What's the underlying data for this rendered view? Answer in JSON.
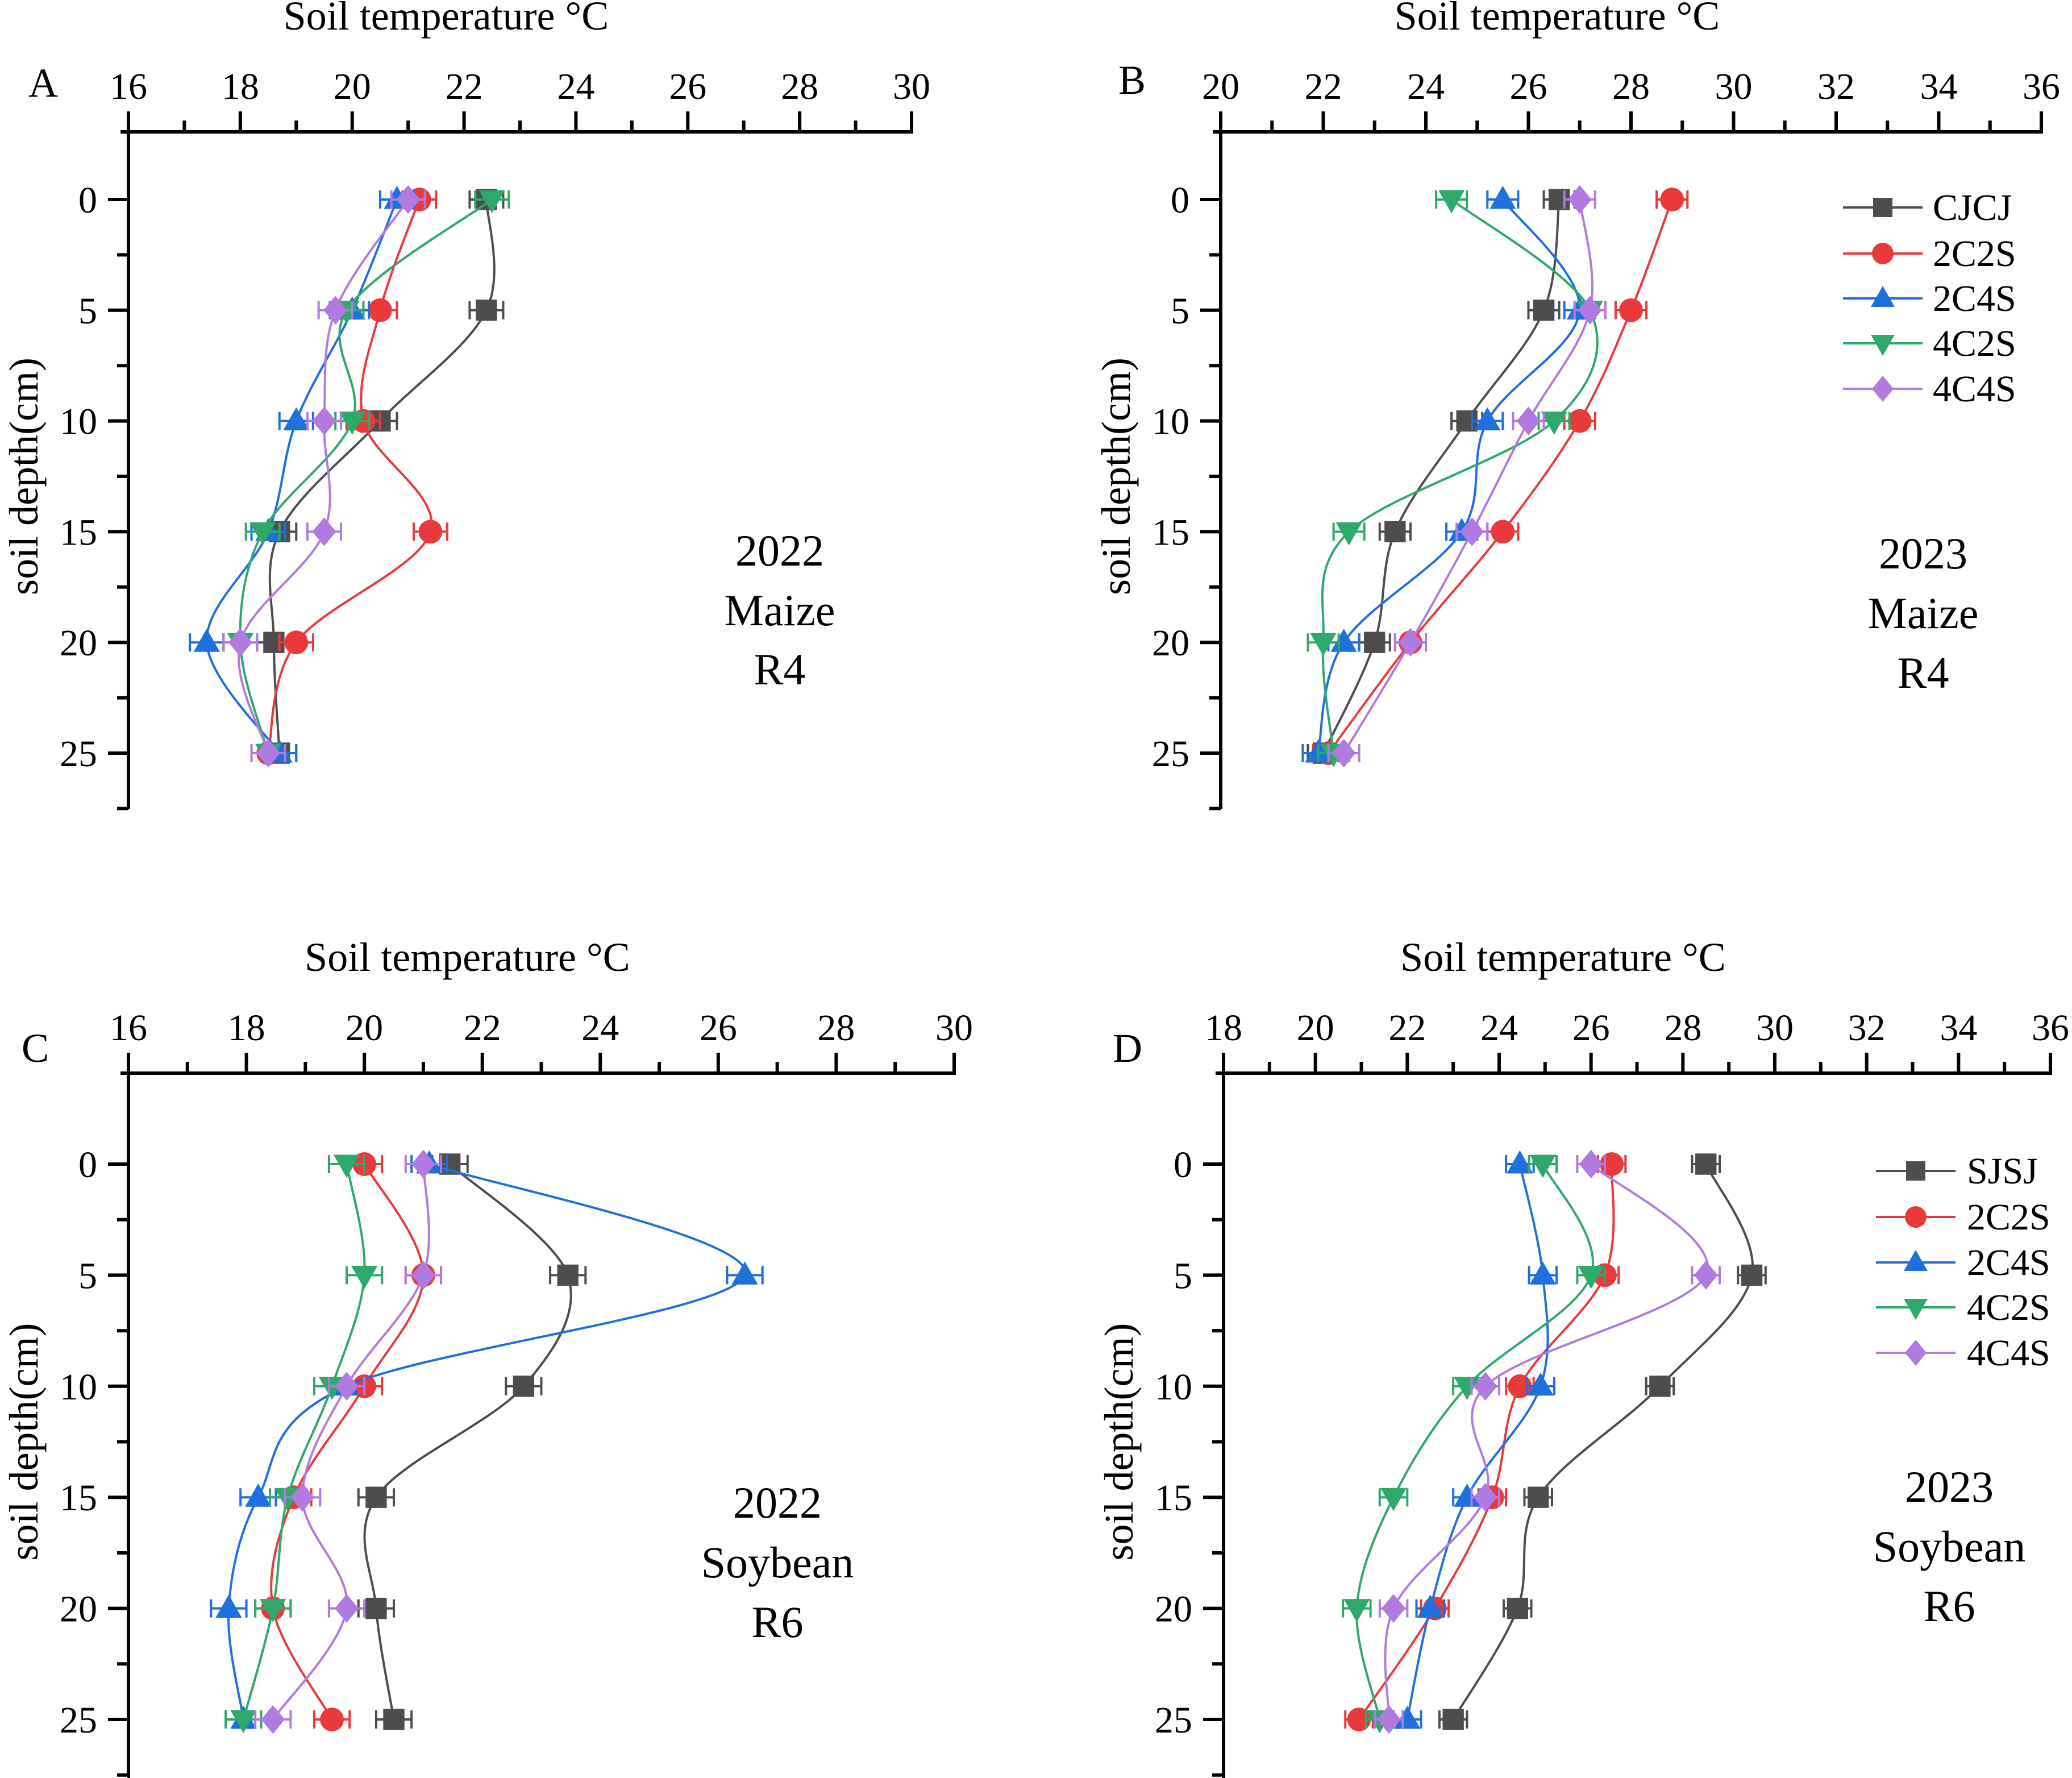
{
  "chart_data": [
    {
      "type": "line",
      "panel": "A",
      "title": "Soil temperature °C",
      "xlabel": "Soil temperature °C",
      "ylabel": "soil depth(cm)",
      "annotation": [
        "2022",
        "Maize",
        "R4"
      ],
      "xlim": [
        16,
        30
      ],
      "xticks": [
        16,
        18,
        20,
        22,
        24,
        26,
        28,
        30
      ],
      "ylim": [
        27.5,
        -2.5
      ],
      "yticks": [
        0,
        5,
        10,
        15,
        20,
        25
      ],
      "y": [
        0,
        5,
        10,
        15,
        20,
        25
      ],
      "legend": null,
      "series": [
        {
          "name": "CJCJ",
          "color": "#4d4d4d",
          "marker": "square",
          "values": [
            22.4,
            22.4,
            20.5,
            18.7,
            18.6,
            18.7
          ]
        },
        {
          "name": "2C2S",
          "color": "#e8393b",
          "marker": "circle",
          "values": [
            21.2,
            20.5,
            20.2,
            21.4,
            19.0,
            18.5
          ]
        },
        {
          "name": "2C4S",
          "color": "#1f6fdc",
          "marker": "triangle-up",
          "values": [
            20.8,
            20.0,
            19.0,
            18.5,
            17.4,
            18.7
          ]
        },
        {
          "name": "4C2S",
          "color": "#2ea86b",
          "marker": "triangle-down",
          "values": [
            22.5,
            19.9,
            20.0,
            18.4,
            18.0,
            18.5
          ]
        },
        {
          "name": "4C4S",
          "color": "#b07ae0",
          "marker": "diamond",
          "values": [
            21.0,
            19.7,
            19.5,
            19.5,
            18.0,
            18.5
          ]
        }
      ]
    },
    {
      "type": "line",
      "panel": "B",
      "title": "Soil temperature °C",
      "xlabel": "Soil temperature °C",
      "ylabel": "soil depth(cm)",
      "annotation": [
        "2023",
        "Maize",
        "R4"
      ],
      "xlim": [
        20,
        36
      ],
      "xticks": [
        20,
        22,
        24,
        26,
        28,
        30,
        32,
        34,
        36
      ],
      "ylim": [
        27.5,
        -2.5
      ],
      "yticks": [
        0,
        5,
        10,
        15,
        20,
        25
      ],
      "y": [
        0,
        5,
        10,
        15,
        20,
        25
      ],
      "legend": "top-right",
      "series": [
        {
          "name": "CJCJ",
          "color": "#4d4d4d",
          "marker": "square",
          "values": [
            26.6,
            26.3,
            24.8,
            23.4,
            23.0,
            22.0
          ]
        },
        {
          "name": "2C2S",
          "color": "#e8393b",
          "marker": "circle",
          "values": [
            28.8,
            28.0,
            27.0,
            25.5,
            23.7,
            22.1
          ]
        },
        {
          "name": "2C4S",
          "color": "#1f6fdc",
          "marker": "triangle-up",
          "values": [
            25.5,
            27.0,
            25.2,
            24.7,
            22.4,
            21.9
          ]
        },
        {
          "name": "4C2S",
          "color": "#2ea86b",
          "marker": "triangle-down",
          "values": [
            24.5,
            27.2,
            26.5,
            22.5,
            22.0,
            22.2
          ]
        },
        {
          "name": "4C4S",
          "color": "#b07ae0",
          "marker": "diamond",
          "values": [
            27.0,
            27.2,
            26.0,
            24.9,
            23.7,
            22.4
          ]
        }
      ]
    },
    {
      "type": "line",
      "panel": "C",
      "title": "Soil temperature °C",
      "xlabel": "Soil temperature °C",
      "ylabel": "soil depth(cm)",
      "annotation": [
        "2022",
        "Soybean",
        "R6"
      ],
      "xlim": [
        16,
        30
      ],
      "xticks": [
        16,
        18,
        20,
        22,
        24,
        26,
        28,
        30
      ],
      "ylim": [
        27.5,
        -2.5
      ],
      "yticks": [
        0,
        5,
        10,
        15,
        20,
        25
      ],
      "y": [
        0,
        5,
        10,
        15,
        20,
        25
      ],
      "legend": null,
      "series": [
        {
          "name": "SJSJ",
          "color": "#4d4d4d",
          "marker": "square",
          "values": [
            21.45,
            23.45,
            22.7,
            20.2,
            20.2,
            20.5
          ]
        },
        {
          "name": "2C2S",
          "color": "#e8393b",
          "marker": "circle",
          "values": [
            20.0,
            21.0,
            20.0,
            18.8,
            18.45,
            19.45
          ]
        },
        {
          "name": "2C4S",
          "color": "#1f6fdc",
          "marker": "triangle-up",
          "values": [
            21.1,
            26.45,
            19.7,
            18.2,
            17.7,
            17.95
          ]
        },
        {
          "name": "4C2S",
          "color": "#2ea86b",
          "marker": "triangle-down",
          "values": [
            19.7,
            20.0,
            19.45,
            18.7,
            18.45,
            17.95
          ]
        },
        {
          "name": "4C4S",
          "color": "#b07ae0",
          "marker": "diamond",
          "values": [
            21.0,
            21.0,
            19.7,
            18.95,
            19.7,
            18.45
          ]
        }
      ]
    },
    {
      "type": "line",
      "panel": "D",
      "title": "Soil temperature °C",
      "xlabel": "Soil temperature °C",
      "ylabel": "soil depth(cm)",
      "annotation": [
        "2023",
        "Soybean",
        "R6"
      ],
      "xlim": [
        18,
        36
      ],
      "xticks": [
        18,
        20,
        22,
        24,
        26,
        28,
        30,
        32,
        34,
        36
      ],
      "ylim": [
        27.5,
        -2.5
      ],
      "yticks": [
        0,
        5,
        10,
        15,
        20,
        25
      ],
      "y": [
        0,
        5,
        10,
        15,
        20,
        25
      ],
      "legend": "top-right",
      "series": [
        {
          "name": "SJSJ",
          "color": "#4d4d4d",
          "marker": "square",
          "values": [
            28.5,
            29.5,
            27.5,
            24.85,
            24.4,
            23.0
          ]
        },
        {
          "name": "2C2S",
          "color": "#e8393b",
          "marker": "circle",
          "values": [
            26.45,
            26.3,
            24.45,
            23.85,
            22.6,
            20.95
          ]
        },
        {
          "name": "2C4S",
          "color": "#1f6fdc",
          "marker": "triangle-up",
          "values": [
            24.45,
            24.95,
            24.9,
            23.3,
            22.5,
            22.0
          ]
        },
        {
          "name": "4C2S",
          "color": "#2ea86b",
          "marker": "triangle-down",
          "values": [
            24.95,
            26.0,
            23.3,
            21.7,
            20.9,
            21.4
          ]
        },
        {
          "name": "4C4S",
          "color": "#b07ae0",
          "marker": "diamond",
          "values": [
            26.0,
            28.5,
            23.7,
            23.7,
            21.7,
            21.6
          ]
        }
      ]
    }
  ]
}
